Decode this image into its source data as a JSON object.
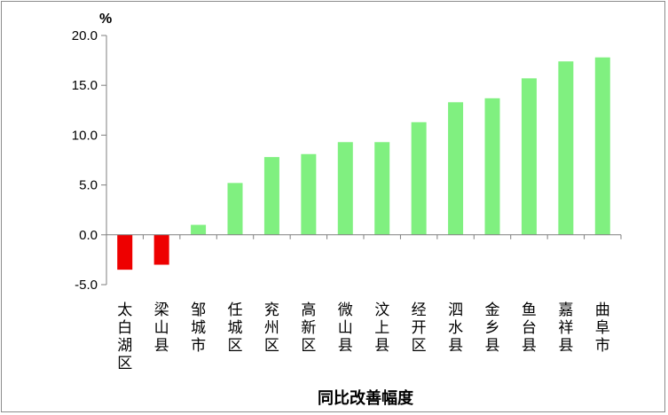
{
  "chart_data": {
    "type": "bar",
    "title": "",
    "xlabel": "同比改善幅度",
    "ylabel": "%",
    "ylim": [
      -5,
      20
    ],
    "yticks": [
      "20.0",
      "15.0",
      "10.0",
      "5.0",
      "0.0",
      "-5.0"
    ],
    "ytick_values": [
      20,
      15,
      10,
      5,
      0,
      -5
    ],
    "grid": false,
    "legend": "none",
    "categories": [
      "太白湖区",
      "梁山县",
      "邹城市",
      "任城区",
      "兖州区",
      "高新区",
      "微山县",
      "汶上县",
      "经开区",
      "泗水县",
      "金乡县",
      "鱼台县",
      "嘉祥县",
      "曲阜市"
    ],
    "values": [
      -3.5,
      -3.0,
      1.0,
      5.2,
      7.8,
      8.1,
      9.3,
      9.3,
      11.3,
      13.3,
      13.7,
      15.7,
      17.4,
      17.8
    ],
    "colors": {
      "positive": "#80f080",
      "negative": "#ee0000",
      "axis": "#7f7f7f"
    }
  }
}
